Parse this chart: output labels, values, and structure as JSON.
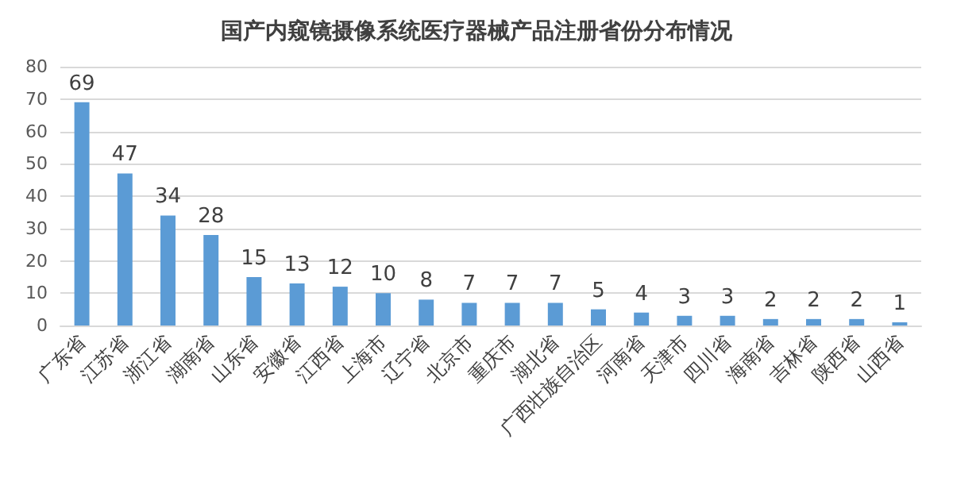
{
  "chart_data": {
    "type": "bar",
    "title": "国产内窥镜摄像系统医疗器械产品注册省份分布情况",
    "categories": [
      "广东省",
      "江苏省",
      "浙江省",
      "湖南省",
      "山东省",
      "安徽省",
      "江西省",
      "上海市",
      "辽宁省",
      "北京市",
      "重庆市",
      "湖北省",
      "广西壮族自治区",
      "河南省",
      "天津市",
      "四川省",
      "海南省",
      "吉林省",
      "陕西省",
      "山西省"
    ],
    "values": [
      69,
      47,
      34,
      28,
      15,
      13,
      12,
      10,
      8,
      7,
      7,
      7,
      5,
      4,
      3,
      3,
      2,
      2,
      2,
      1
    ],
    "color": "#5b9bd5",
    "ylim": [
      0,
      80
    ],
    "yticks": [
      0,
      10,
      20,
      30,
      40,
      50,
      60,
      70,
      80
    ],
    "grid": "y",
    "data_labels": true
  }
}
